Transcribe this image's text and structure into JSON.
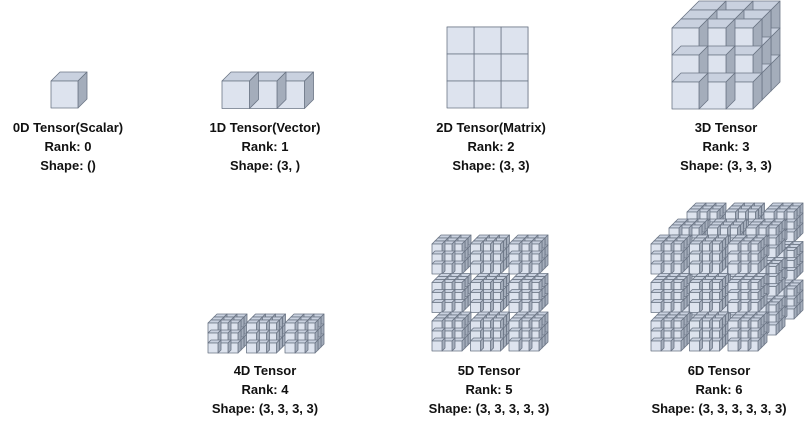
{
  "colors": {
    "front": "#dde3ee",
    "top": "#c9d1df",
    "side": "#a4adbb",
    "edge": "#6b7585",
    "text": "#111111"
  },
  "tensors": [
    {
      "name": "0D Tensor(Scalar)",
      "rank": "Rank: 0",
      "shape": "Shape: ()",
      "dims": []
    },
    {
      "name": "1D Tensor(Vector)",
      "rank": "Rank: 1",
      "shape": "Shape: (3, )",
      "dims": [
        3
      ]
    },
    {
      "name": "2D Tensor(Matrix)",
      "rank": "Rank: 2",
      "shape": "Shape: (3, 3)",
      "dims": [
        3,
        3
      ]
    },
    {
      "name": "3D Tensor",
      "rank": "Rank: 3",
      "shape": "Shape: (3, 3, 3)",
      "dims": [
        3,
        3,
        3
      ]
    },
    {
      "name": "4D Tensor",
      "rank": "Rank: 4",
      "shape": "Shape: (3, 3, 3, 3)",
      "dims": [
        3,
        3,
        3,
        3
      ]
    },
    {
      "name": "5D Tensor",
      "rank": "Rank: 5",
      "shape": "Shape: (3, 3, 3, 3, 3)",
      "dims": [
        3,
        3,
        3,
        3,
        3
      ]
    },
    {
      "name": "6D Tensor",
      "rank": "Rank: 6",
      "shape": "Shape: (3, 3, 3, 3, 3, 3)",
      "dims": [
        3,
        3,
        3,
        3,
        3,
        3
      ]
    }
  ]
}
